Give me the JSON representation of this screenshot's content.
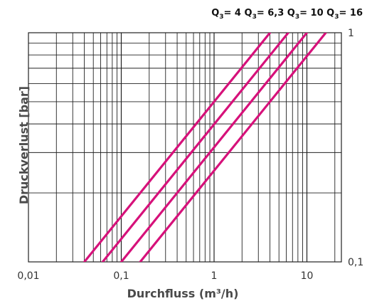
{
  "chart_data": {
    "type": "line",
    "xlabel": "Durchfluss (m³/h)",
    "ylabel": "Druckverlust [bar]",
    "x_scale": "log",
    "y_scale": "log",
    "xlim": [
      0.01,
      20
    ],
    "ylim": [
      0.1,
      1
    ],
    "x_tick_labels": [
      {
        "value": 0.01,
        "label": "0,01"
      },
      {
        "value": 0.1,
        "label": "0,1"
      },
      {
        "value": 1,
        "label": "1"
      },
      {
        "value": 10,
        "label": "10"
      }
    ],
    "y_tick_labels": [
      {
        "value": 1,
        "label": "1"
      },
      {
        "value": 0.1,
        "label": "0,1"
      }
    ],
    "grid": true,
    "line_color": "#d6117a",
    "legend": {
      "placement": "top",
      "prefix": "Q",
      "subscript": "3",
      "separator": "= ",
      "entries": [
        "4",
        "6,3",
        "10",
        "16"
      ]
    },
    "series": [
      {
        "name": "4",
        "points": [
          [
            0.04,
            0.1
          ],
          [
            4.0,
            1.0
          ]
        ]
      },
      {
        "name": "6,3",
        "points": [
          [
            0.063,
            0.1
          ],
          [
            6.3,
            1.0
          ]
        ]
      },
      {
        "name": "10",
        "points": [
          [
            0.1,
            0.1
          ],
          [
            10,
            1.0
          ]
        ]
      },
      {
        "name": "16",
        "points": [
          [
            0.16,
            0.1
          ],
          [
            16,
            1.0
          ]
        ]
      }
    ]
  }
}
